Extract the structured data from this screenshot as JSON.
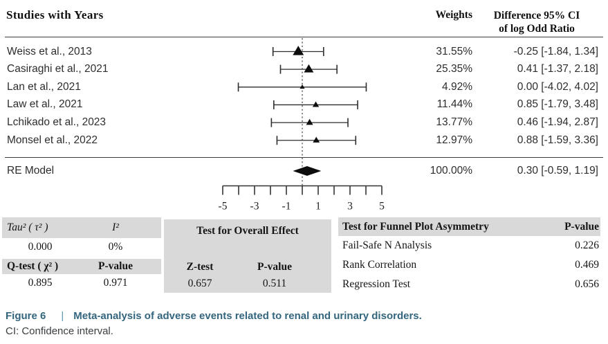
{
  "header": {
    "left": "Studies with Years",
    "weights": "Weights",
    "difference_line1": "Difference 95% CI",
    "difference_line2": "of log Odd Ratio"
  },
  "chart_data": {
    "type": "forest",
    "title": "Meta-analysis forest plot of adverse events related to renal and urinary disorders",
    "effect_measure": "Difference of log Odd Ratio",
    "x_axis": {
      "min": -5,
      "max": 5,
      "tick_step": 1,
      "labeled_ticks": [
        -5,
        -3,
        -1,
        1,
        3,
        5
      ],
      "reference_line": 0
    },
    "studies": [
      {
        "label": "Weiss et al., 2013",
        "weight": "31.55%",
        "weight_pct": 31.55,
        "estimate": -0.25,
        "ci_low": -1.84,
        "ci_high": 1.34,
        "difference": "-0.25 [-1.84, 1.34]"
      },
      {
        "label": "Casiraghi et al., 2021",
        "weight": "25.35%",
        "weight_pct": 25.35,
        "estimate": 0.41,
        "ci_low": -1.37,
        "ci_high": 2.18,
        "difference": "0.41 [-1.37, 2.18]"
      },
      {
        "label": "Lan et al., 2021",
        "weight": "4.92%",
        "weight_pct": 4.92,
        "estimate": 0.0,
        "ci_low": -4.02,
        "ci_high": 4.02,
        "difference": "0.00 [-4.02, 4.02]"
      },
      {
        "label": "Law et al., 2021",
        "weight": "11.44%",
        "weight_pct": 11.44,
        "estimate": 0.85,
        "ci_low": -1.79,
        "ci_high": 3.48,
        "difference": "0.85 [-1.79, 3.48]"
      },
      {
        "label": "Lchikado et al., 2023",
        "weight": "13.77%",
        "weight_pct": 13.77,
        "estimate": 0.46,
        "ci_low": -1.94,
        "ci_high": 2.87,
        "difference": "0.46 [-1.94, 2.87]"
      },
      {
        "label": "Monsel et al., 2022",
        "weight": "12.97%",
        "weight_pct": 12.97,
        "estimate": 0.88,
        "ci_low": -1.59,
        "ci_high": 3.36,
        "difference": "0.88 [-1.59, 3.36]"
      }
    ],
    "summary": {
      "label": "RE Model",
      "weight": "100.00%",
      "estimate": 0.3,
      "ci_low": -0.59,
      "ci_high": 1.19,
      "difference": "0.30 [-0.59, 1.19]"
    }
  },
  "tables": {
    "heterogeneity": {
      "header1": [
        "Tau² ( τ² )",
        "I²"
      ],
      "values1": [
        "0.000",
        "0%"
      ],
      "header2": [
        "Q-test ( χ² )",
        "P-value"
      ],
      "values2": [
        "0.895",
        "0.971"
      ]
    },
    "overall_effect": {
      "title": "Test for Overall Effect",
      "headers": [
        "Z-test",
        "P-value"
      ],
      "values": [
        "0.657",
        "0.511"
      ]
    },
    "funnel": {
      "title": "Test for Funnel Plot Asymmetry",
      "pvalue_header": "P-value",
      "rows": [
        {
          "label": "Fail-Safe N Analysis",
          "value": "0.226"
        },
        {
          "label": "Rank Correlation",
          "value": "0.469"
        },
        {
          "label": "Regression Test",
          "value": "0.656"
        }
      ]
    }
  },
  "caption": {
    "figure_label": "Figure 6",
    "separator": "|",
    "title": "Meta-analysis of adverse events related to renal and urinary disorders.",
    "note": "CI: Confidence interval."
  },
  "colors": {
    "caption_accent": "#33657e",
    "caption_separator": "#5d93ae",
    "table_header_bg": "#d9d9d9",
    "ink": "#1f1f1f",
    "marker": "#0d0d0d",
    "line": "#2d2d2d"
  }
}
